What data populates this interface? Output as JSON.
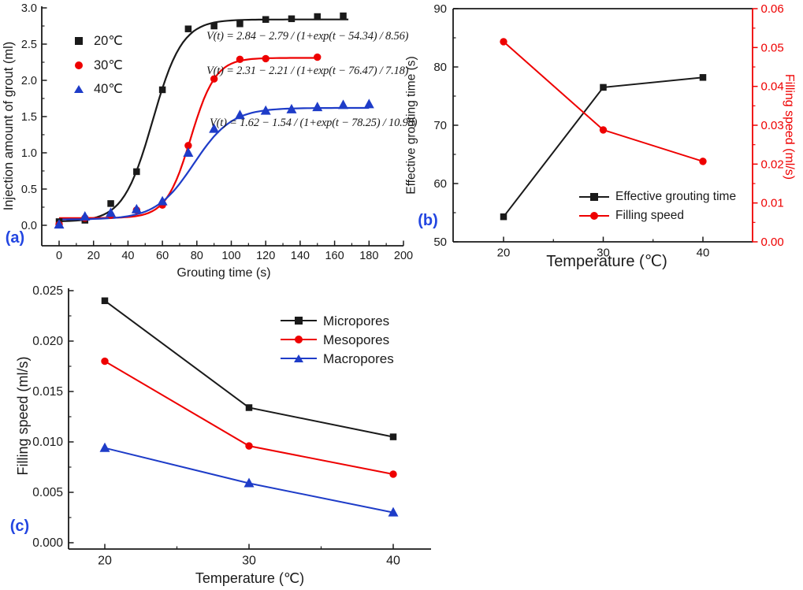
{
  "colors": {
    "black": "#1a1a1a",
    "red": "#ee0000",
    "blue": "#1e3cc8",
    "panel_label_blue": "#2346e1"
  },
  "panel_a": {
    "label": "(a)",
    "chart_data": {
      "type": "line",
      "xlabel": "Grouting time (s)",
      "ylabel": "Injection amount of grout (ml)",
      "xlim": [
        0,
        200
      ],
      "ylim": [
        0.0,
        3.0
      ],
      "grid": false,
      "legend_position": "upper-left",
      "xticks": [
        "0",
        "20",
        "40",
        "60",
        "80",
        "100",
        "120",
        "140",
        "160",
        "180",
        "200"
      ],
      "yticks": [
        "0.0",
        "0.5",
        "1.0",
        "1.5",
        "2.0",
        "2.5",
        "3.0"
      ],
      "series": [
        {
          "name": "20℃",
          "color": "#1a1a1a",
          "marker": "square",
          "x": [
            0,
            15,
            30,
            45,
            60,
            75,
            90,
            105,
            120,
            135,
            150,
            165
          ],
          "y": [
            0.05,
            0.07,
            0.3,
            0.74,
            1.87,
            2.71,
            2.75,
            2.78,
            2.84,
            2.85,
            2.88,
            2.89
          ],
          "fit": {
            "A": 2.84,
            "B": 2.79,
            "t0": 54.34,
            "tau": 8.56,
            "t_end": 169
          }
        },
        {
          "name": "30℃",
          "color": "#ee0000",
          "marker": "circle",
          "x": [
            0,
            15,
            30,
            45,
            60,
            75,
            90,
            105,
            120,
            150
          ],
          "y": [
            0.01,
            0.1,
            0.14,
            0.21,
            0.28,
            1.1,
            2.02,
            2.29,
            2.3,
            2.32
          ],
          "fit": {
            "A": 2.31,
            "B": 2.21,
            "t0": 76.47,
            "tau": 7.18,
            "t_end": 150
          }
        },
        {
          "name": "40℃",
          "color": "#1e3cc8",
          "marker": "triangle",
          "x": [
            0,
            15,
            30,
            45,
            60,
            75,
            90,
            105,
            120,
            135,
            150,
            165,
            180
          ],
          "y": [
            0.01,
            0.12,
            0.17,
            0.22,
            0.33,
            1.0,
            1.33,
            1.52,
            1.58,
            1.6,
            1.63,
            1.66,
            1.67
          ],
          "fit": {
            "A": 1.62,
            "B": 1.54,
            "t0": 78.25,
            "tau": 10.98,
            "t_end": 180
          }
        }
      ],
      "equations": [
        "V(t) = 2.84 − 2.79 / (1+exp(t − 54.34) / 8.56)",
        "V(t) = 2.31 − 2.21 / (1+exp(t − 76.47) / 7.18)",
        "V(t) = 1.62 − 1.54 / (1+exp(t − 78.25) / 10.98)"
      ]
    }
  },
  "panel_b": {
    "label": "(b)",
    "chart_data": {
      "type": "line",
      "xlabel": "Temperature (℃)",
      "ylabel_left": "Effective grouting time (s)",
      "ylabel_right": "Filling speed (ml/s)",
      "xlim": [
        15,
        45
      ],
      "ylim_left": [
        50,
        90
      ],
      "ylim_right": [
        0.0,
        0.06
      ],
      "grid": false,
      "legend_position": "lower-right",
      "x": [
        20,
        30,
        40
      ],
      "xticks": [
        "20",
        "30",
        "40"
      ],
      "yticks_left": [
        "50",
        "60",
        "70",
        "80",
        "90"
      ],
      "yticks_right": [
        "0.00",
        "0.01",
        "0.02",
        "0.03",
        "0.04",
        "0.05",
        "0.06"
      ],
      "series": [
        {
          "name": "Effective grouting time",
          "axis": "left",
          "color": "#1a1a1a",
          "marker": "square",
          "values": [
            54.3,
            76.5,
            78.2
          ]
        },
        {
          "name": "Filling speed",
          "axis": "right",
          "color": "#ee0000",
          "marker": "circle",
          "values": [
            0.0515,
            0.0288,
            0.0207
          ]
        }
      ]
    }
  },
  "panel_c": {
    "label": "(c)",
    "chart_data": {
      "type": "line",
      "xlabel": "Temperature (℃)",
      "ylabel": "Filling speed (ml/s)",
      "xlim": [
        17.5,
        42.5
      ],
      "ylim": [
        0.0,
        0.025
      ],
      "grid": false,
      "legend_position": "upper-right",
      "x": [
        20,
        30,
        40
      ],
      "xticks": [
        "20",
        "30",
        "40"
      ],
      "yticks": [
        "0.000",
        "0.005",
        "0.010",
        "0.015",
        "0.020",
        "0.025"
      ],
      "series": [
        {
          "name": "Micropores",
          "color": "#1a1a1a",
          "marker": "square",
          "values": [
            0.024,
            0.0134,
            0.0105
          ]
        },
        {
          "name": "Mesopores",
          "color": "#ee0000",
          "marker": "circle",
          "values": [
            0.018,
            0.0096,
            0.0068
          ]
        },
        {
          "name": "Macropores",
          "color": "#1e3cc8",
          "marker": "triangle",
          "values": [
            0.0094,
            0.0059,
            0.003
          ]
        }
      ]
    }
  }
}
